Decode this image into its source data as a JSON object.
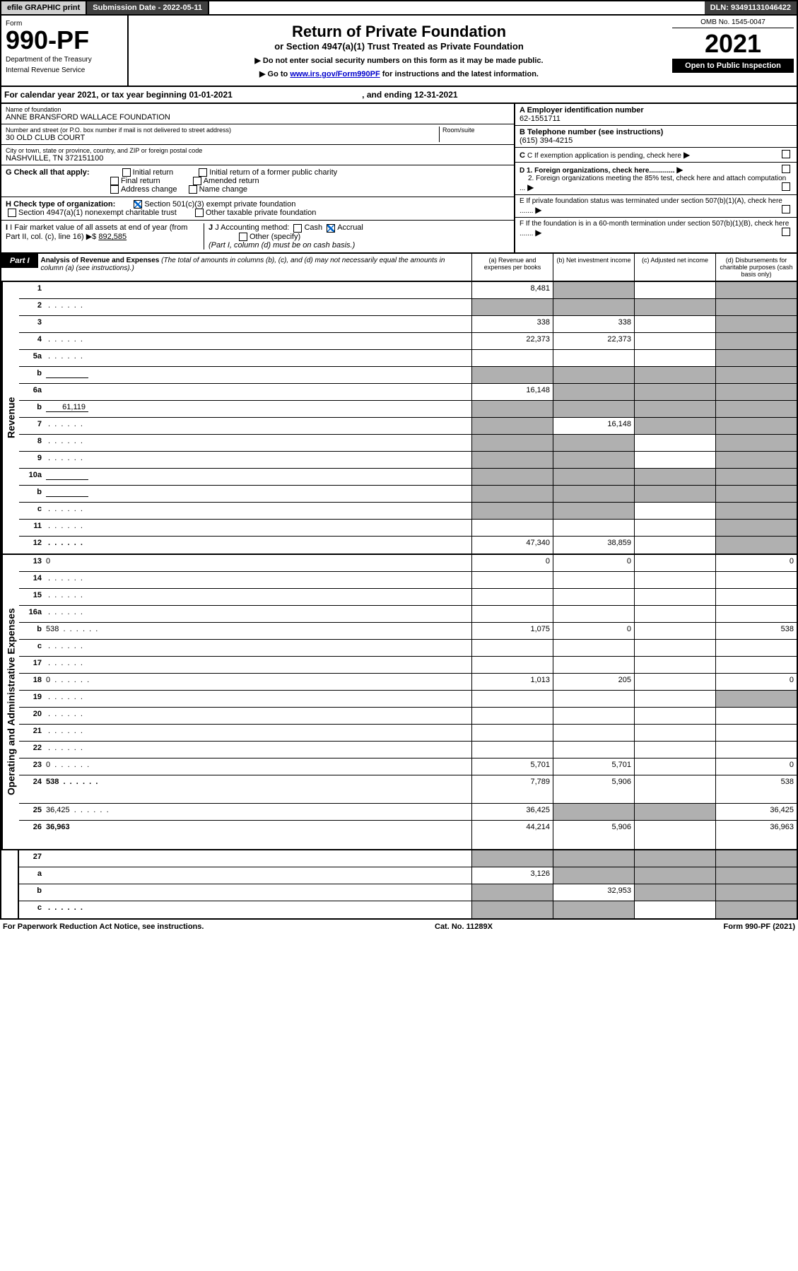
{
  "topbar": {
    "efile": "efile GRAPHIC print",
    "subdate_lbl": "Submission Date - 2022-05-11",
    "dln": "DLN: 93491131046422"
  },
  "header": {
    "form_lbl": "Form",
    "form_num": "990-PF",
    "dept1": "Department of the Treasury",
    "dept2": "Internal Revenue Service",
    "title": "Return of Private Foundation",
    "subtitle": "or Section 4947(a)(1) Trust Treated as Private Foundation",
    "instr1": "▶ Do not enter social security numbers on this form as it may be made public.",
    "instr2": "▶ Go to ",
    "instr2_link": "www.irs.gov/Form990PF",
    "instr2_end": " for instructions and the latest information.",
    "omb": "OMB No. 1545-0047",
    "year": "2021",
    "open_pub": "Open to Public Inspection"
  },
  "calyear": {
    "text_a": "For calendar year 2021, or tax year beginning 01-01-2021",
    "text_b": ", and ending 12-31-2021"
  },
  "info": {
    "name_lbl": "Name of foundation",
    "name": "ANNE BRANSFORD WALLACE FOUNDATION",
    "addr_lbl": "Number and street (or P.O. box number if mail is not delivered to street address)",
    "addr": "30 OLD CLUB COURT",
    "room_lbl": "Room/suite",
    "city_lbl": "City or town, state or province, country, and ZIP or foreign postal code",
    "city": "NASHVILLE, TN  372151100",
    "ein_lbl": "A Employer identification number",
    "ein": "62-1551711",
    "phone_lbl": "B Telephone number (see instructions)",
    "phone": "(615) 394-4215",
    "c_lbl": "C If exemption application is pending, check here",
    "d1": "D 1. Foreign organizations, check here.............",
    "d2": "2. Foreign organizations meeting the 85% test, check here and attach computation ...",
    "e_lbl": "E  If private foundation status was terminated under section 507(b)(1)(A), check here .......",
    "f_lbl": "F  If the foundation is in a 60-month termination under section 507(b)(1)(B), check here .......",
    "g_lbl": "G Check all that apply:",
    "g_opts": [
      "Initial return",
      "Initial return of a former public charity",
      "Final return",
      "Amended return",
      "Address change",
      "Name change"
    ],
    "h_lbl": "H Check type of organization:",
    "h1": "Section 501(c)(3) exempt private foundation",
    "h2": "Section 4947(a)(1) nonexempt charitable trust",
    "h3": "Other taxable private foundation",
    "i_lbl": "I Fair market value of all assets at end of year (from Part II, col. (c), line 16)",
    "i_val": "892,585",
    "j_lbl": "J Accounting method:",
    "j_cash": "Cash",
    "j_accrual": "Accrual",
    "j_other": "Other (specify)",
    "j_note": "(Part I, column (d) must be on cash basis.)"
  },
  "part1": {
    "label": "Part I",
    "title": "Analysis of Revenue and Expenses",
    "desc": "(The total of amounts in columns (b), (c), and (d) may not necessarily equal the amounts in column (a) (see instructions).)",
    "cols": {
      "a": "(a)  Revenue and expenses per books",
      "b": "(b)  Net investment income",
      "c": "(c)  Adjusted net income",
      "d": "(d)  Disbursements for charitable purposes (cash basis only)"
    }
  },
  "sides": {
    "rev": "Revenue",
    "exp": "Operating and Administrative Expenses"
  },
  "rows": [
    {
      "n": "1",
      "d": "",
      "a": "8,481",
      "b": "",
      "c": "",
      "gb": true,
      "gc": false,
      "gd": true
    },
    {
      "n": "2",
      "d": "",
      "a": "",
      "b": "",
      "c": "",
      "ga": true,
      "gb": true,
      "gc": true,
      "gd": true,
      "dots": true
    },
    {
      "n": "3",
      "d": "",
      "a": "338",
      "b": "338",
      "c": "",
      "gd": true
    },
    {
      "n": "4",
      "d": "",
      "a": "22,373",
      "b": "22,373",
      "c": "",
      "gd": true,
      "dots": true
    },
    {
      "n": "5a",
      "d": "",
      "a": "",
      "b": "",
      "c": "",
      "gd": true,
      "dots": true
    },
    {
      "n": "b",
      "d": "",
      "a": "",
      "b": "",
      "c": "",
      "ga": true,
      "gb": true,
      "gc": true,
      "gd": true,
      "sub": true
    },
    {
      "n": "6a",
      "d": "",
      "a": "16,148",
      "b": "",
      "c": "",
      "gb": true,
      "gc": true,
      "gd": true
    },
    {
      "n": "b",
      "d": "",
      "sv": "61,119",
      "a": "",
      "b": "",
      "c": "",
      "ga": true,
      "gb": true,
      "gc": true,
      "gd": true,
      "sub": true
    },
    {
      "n": "7",
      "d": "",
      "a": "",
      "b": "16,148",
      "c": "",
      "ga": true,
      "gc": true,
      "gd": true,
      "dots": true
    },
    {
      "n": "8",
      "d": "",
      "a": "",
      "b": "",
      "c": "",
      "ga": true,
      "gb": true,
      "gd": true,
      "dots": true
    },
    {
      "n": "9",
      "d": "",
      "a": "",
      "b": "",
      "c": "",
      "ga": true,
      "gb": true,
      "gd": true,
      "dots": true
    },
    {
      "n": "10a",
      "d": "",
      "a": "",
      "b": "",
      "c": "",
      "ga": true,
      "gb": true,
      "gc": true,
      "gd": true,
      "sub": true
    },
    {
      "n": "b",
      "d": "",
      "a": "",
      "b": "",
      "c": "",
      "ga": true,
      "gb": true,
      "gc": true,
      "gd": true,
      "sub": true,
      "dots": true
    },
    {
      "n": "c",
      "d": "",
      "a": "",
      "b": "",
      "c": "",
      "ga": true,
      "gb": true,
      "gd": true,
      "dots": true
    },
    {
      "n": "11",
      "d": "",
      "a": "",
      "b": "",
      "c": "",
      "gd": true,
      "dots": true
    },
    {
      "n": "12",
      "d": "",
      "a": "47,340",
      "b": "38,859",
      "c": "",
      "gd": true,
      "bold": true,
      "dots": true
    }
  ],
  "rows2": [
    {
      "n": "13",
      "d": "0",
      "a": "0",
      "b": "0",
      "c": ""
    },
    {
      "n": "14",
      "d": "",
      "a": "",
      "b": "",
      "c": "",
      "dots": true
    },
    {
      "n": "15",
      "d": "",
      "a": "",
      "b": "",
      "c": "",
      "dots": true
    },
    {
      "n": "16a",
      "d": "",
      "a": "",
      "b": "",
      "c": "",
      "dots": true
    },
    {
      "n": "b",
      "d": "538",
      "a": "1,075",
      "b": "0",
      "c": "",
      "dots": true
    },
    {
      "n": "c",
      "d": "",
      "a": "",
      "b": "",
      "c": "",
      "dots": true
    },
    {
      "n": "17",
      "d": "",
      "a": "",
      "b": "",
      "c": "",
      "dots": true
    },
    {
      "n": "18",
      "d": "0",
      "a": "1,013",
      "b": "205",
      "c": "",
      "dots": true
    },
    {
      "n": "19",
      "d": "",
      "a": "",
      "b": "",
      "c": "",
      "gd": true,
      "dots": true
    },
    {
      "n": "20",
      "d": "",
      "a": "",
      "b": "",
      "c": "",
      "dots": true
    },
    {
      "n": "21",
      "d": "",
      "a": "",
      "b": "",
      "c": "",
      "dots": true
    },
    {
      "n": "22",
      "d": "",
      "a": "",
      "b": "",
      "c": "",
      "dots": true
    },
    {
      "n": "23",
      "d": "0",
      "a": "5,701",
      "b": "5,701",
      "c": "",
      "dots": true
    },
    {
      "n": "24",
      "d": "538",
      "a": "7,789",
      "b": "5,906",
      "c": "",
      "bold": true,
      "dots": true,
      "tall": true
    },
    {
      "n": "25",
      "d": "36,425",
      "a": "36,425",
      "b": "",
      "c": "",
      "gb": true,
      "gc": true,
      "dots": true
    },
    {
      "n": "26",
      "d": "36,963",
      "a": "44,214",
      "b": "5,906",
      "c": "",
      "bold": true,
      "tall": true
    }
  ],
  "rows3": [
    {
      "n": "27",
      "d": "",
      "a": "",
      "b": "",
      "c": "",
      "ga": true,
      "gb": true,
      "gc": true,
      "gd": true
    },
    {
      "n": "a",
      "d": "",
      "a": "3,126",
      "b": "",
      "c": "",
      "gb": true,
      "gc": true,
      "gd": true,
      "bold": true
    },
    {
      "n": "b",
      "d": "",
      "a": "",
      "b": "32,953",
      "c": "",
      "ga": true,
      "gc": true,
      "gd": true,
      "bold": true
    },
    {
      "n": "c",
      "d": "",
      "a": "",
      "b": "",
      "c": "",
      "ga": true,
      "gb": true,
      "gd": true,
      "bold": true,
      "dots": true
    }
  ],
  "footer": {
    "left": "For Paperwork Reduction Act Notice, see instructions.",
    "mid": "Cat. No. 11289X",
    "right": "Form 990-PF (2021)"
  }
}
